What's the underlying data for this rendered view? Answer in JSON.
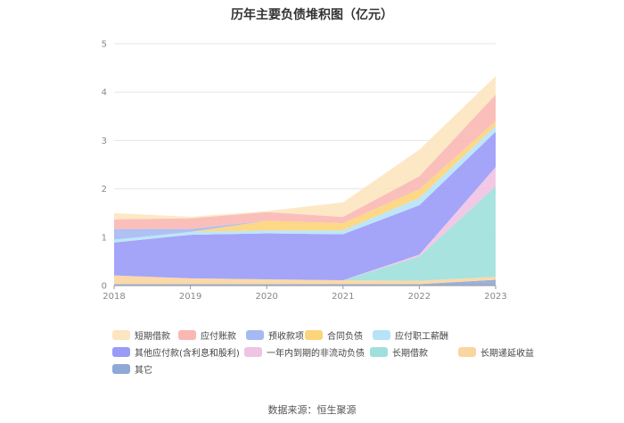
{
  "chart_data": {
    "type": "area",
    "stacked": true,
    "title": "历年主要负债堆积图（亿元）",
    "x": [
      "2018",
      "2019",
      "2020",
      "2021",
      "2022",
      "2023"
    ],
    "ylim": [
      0,
      5
    ],
    "yticks": [
      0,
      1,
      2,
      3,
      4,
      5
    ],
    "grid": true,
    "legend_position": "bottom",
    "series": [
      {
        "name": "其它",
        "color": "#8fa9d6",
        "values": [
          0.03,
          0.03,
          0.03,
          0.03,
          0.03,
          0.12
        ]
      },
      {
        "name": "长期递延收益",
        "color": "#fbd5a0",
        "values": [
          0.18,
          0.12,
          0.1,
          0.08,
          0.07,
          0.06
        ]
      },
      {
        "name": "长期借款",
        "color": "#9fe0dc",
        "values": [
          0,
          0,
          0,
          0,
          0.5,
          1.87
        ]
      },
      {
        "name": "一年内到期的非流动负债",
        "color": "#efc3e3",
        "values": [
          0,
          0,
          0,
          0,
          0.04,
          0.4
        ]
      },
      {
        "name": "其他应付款(含利息和股利)",
        "color": "#9a9af8",
        "values": [
          0.68,
          0.9,
          0.95,
          0.95,
          1.02,
          0.73
        ]
      },
      {
        "name": "应付职工薪酬",
        "color": "#b6e3f8",
        "values": [
          0.06,
          0.06,
          0.06,
          0.08,
          0.15,
          0.12
        ]
      },
      {
        "name": "合同负债",
        "color": "#fcd47a",
        "values": [
          0,
          0,
          0.2,
          0.15,
          0.18,
          0.1
        ]
      },
      {
        "name": "预收款项",
        "color": "#a5b9f3",
        "values": [
          0.22,
          0.06,
          0,
          0,
          0,
          0
        ]
      },
      {
        "name": "应付账款",
        "color": "#f9b8b4",
        "values": [
          0.2,
          0.22,
          0.18,
          0.13,
          0.27,
          0.55
        ]
      },
      {
        "name": "短期借款",
        "color": "#fde5c0",
        "values": [
          0.13,
          0.03,
          0.02,
          0.3,
          0.55,
          0.38
        ]
      }
    ]
  },
  "legend_order": [
    "短期借款",
    "应付账款",
    "预收款项",
    "合同负债",
    "应付职工薪酬",
    "其他应付款(含利息和股利)",
    "一年内到期的非流动负债",
    "长期借款",
    "长期递延收益",
    "其它"
  ],
  "source": "数据来源：恒生聚源"
}
